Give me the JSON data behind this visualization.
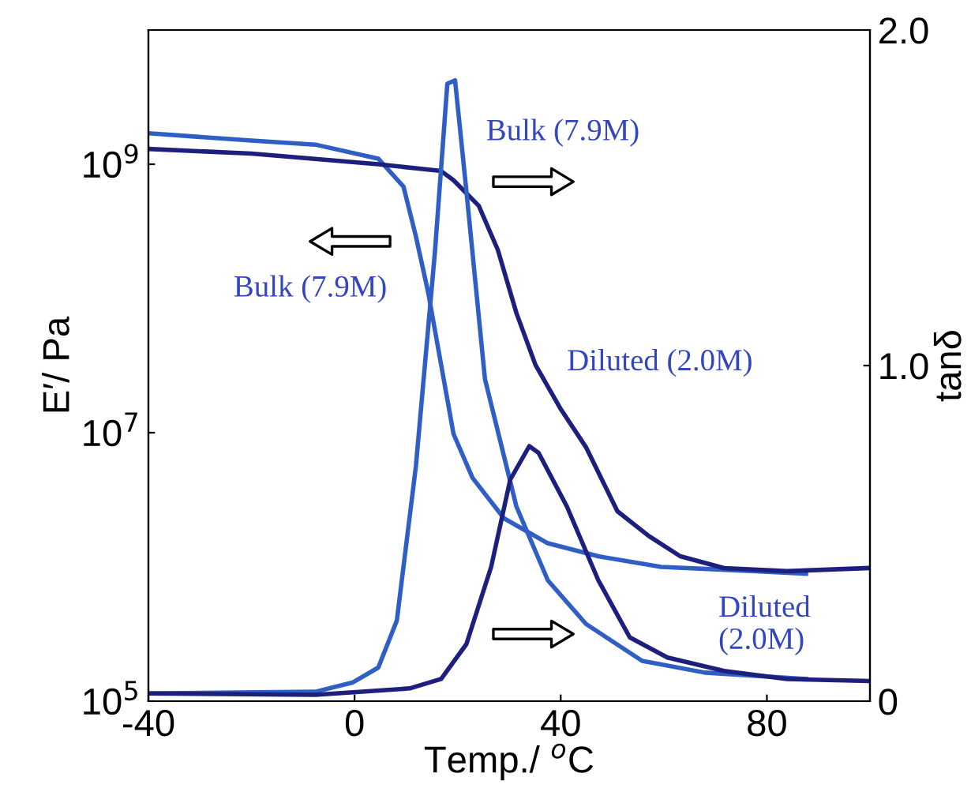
{
  "chart_data": {
    "type": "line",
    "xlabel": "Temp./ $^{o}$C",
    "ylabel": "E′/ Pa",
    "y2label": "tanδ",
    "log": "y",
    "grid": false,
    "marker": "none",
    "line_style": "solid",
    "xlim": [
      -40,
      100
    ],
    "xticks": [
      -40,
      0,
      40,
      80
    ],
    "ylim": [
      100000,
      10000000000
    ],
    "yticks": [
      {
        "value": 100000,
        "label": "10$^{5}$"
      },
      {
        "value": 10000000,
        "label": "10$^{7}$"
      },
      {
        "value": 1000000000,
        "label": "10$^{9}$"
      }
    ],
    "y2lim": [
      0,
      2.0
    ],
    "y2ticks": [
      {
        "value": 0,
        "label": "0"
      },
      {
        "value": 1.0,
        "label": "1.0"
      },
      {
        "value": 2.0,
        "label": "2.0"
      }
    ],
    "series": [
      {
        "color": "#2f5fc4",
        "x": [
          -40,
          -20,
          -7.6,
          4.6,
          9.5,
          11.9,
          14.3,
          16.8,
          19.2,
          22.9,
          29,
          37.5,
          47.3,
          59.5,
          77.8,
          87.6
        ],
        "values": [
          1700000000.0,
          1500000000.0,
          1400000000.0,
          1100000000.0,
          680000000.0,
          290000000.0,
          110000000.0,
          32000000.0,
          9800000.0,
          4600000.0,
          2300000.0,
          1500000.0,
          1200000.0,
          1000000.0,
          930000.0,
          890000.0
        ]
      },
      {
        "color": "#1c1f7c",
        "x": [
          -40,
          -20,
          4.6,
          16.8,
          19.2,
          24.1,
          27.8,
          31.4,
          35.1,
          40,
          44.9,
          51,
          57.1,
          63.2,
          71.7,
          83.9,
          99.6
        ],
        "values": [
          1300000000.0,
          1200000000.0,
          1000000000.0,
          890000000.0,
          760000000.0,
          490000000.0,
          230000000.0,
          78000000.0,
          32000000.0,
          15000000.0,
          7800000.0,
          2600000.0,
          1700000.0,
          1200000.0,
          980000.0,
          930000.0,
          980000.0
        ]
      },
      {
        "color": "#2f5fc4",
        "axis": "y2",
        "x": [
          -40,
          -7.6,
          -0.3,
          4.6,
          8.2,
          11.9,
          15.6,
          18,
          19.5,
          21.7,
          25.3,
          31.4,
          37.5,
          44.9,
          55.8,
          68,
          87.6
        ],
        "values": [
          0.023,
          0.028,
          0.056,
          0.1,
          0.24,
          0.7,
          1.34,
          1.84,
          1.85,
          1.52,
          0.96,
          0.58,
          0.36,
          0.23,
          0.12,
          0.085,
          0.066
        ]
      },
      {
        "color": "#1c1f7c",
        "axis": "y2",
        "x": [
          -40,
          -7.6,
          10.7,
          16.8,
          21.7,
          26.5,
          30.2,
          33.9,
          35.7,
          41.2,
          47.3,
          53.4,
          60.7,
          71.7,
          83.9,
          99.6
        ],
        "values": [
          0.023,
          0.019,
          0.038,
          0.066,
          0.17,
          0.4,
          0.66,
          0.76,
          0.74,
          0.58,
          0.36,
          0.19,
          0.13,
          0.09,
          0.066,
          0.06
        ]
      }
    ],
    "annotations": [
      "Bulk (7.9M)",
      "Bulk (7.9M)",
      "Diluted (2.0M)",
      "Diluted\n(2.0M)"
    ]
  }
}
